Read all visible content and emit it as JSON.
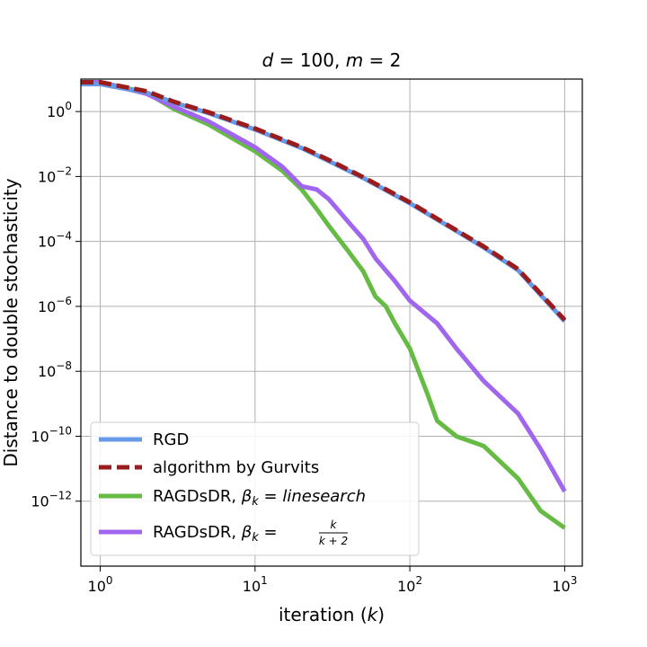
{
  "chart_data": {
    "type": "line",
    "title_parts": {
      "lhs1": "d",
      "eq1": " = 100,  ",
      "lhs2": "m",
      "eq2": " = 2"
    },
    "xlabel_parts": {
      "word": "iteration (",
      "var": "k",
      "close": ")"
    },
    "ylabel": "Distance to double stochasticity",
    "x_scale": "log",
    "y_scale": "log",
    "xlim": [
      0.75,
      1300
    ],
    "ylim": [
      1e-14,
      10
    ],
    "x_ticks": [
      {
        "value": 1,
        "base": "10",
        "exp": "0"
      },
      {
        "value": 10,
        "base": "10",
        "exp": "1"
      },
      {
        "value": 100,
        "base": "10",
        "exp": "2"
      },
      {
        "value": 1000,
        "base": "10",
        "exp": "3"
      }
    ],
    "y_ticks": [
      {
        "value": 1,
        "base": "10",
        "exp": "0"
      },
      {
        "value": 0.01,
        "base": "10",
        "exp": "−2"
      },
      {
        "value": 0.0001,
        "base": "10",
        "exp": "−4"
      },
      {
        "value": 1e-06,
        "base": "10",
        "exp": "−6"
      },
      {
        "value": 1e-08,
        "base": "10",
        "exp": "−8"
      },
      {
        "value": 1e-10,
        "base": "10",
        "exp": "−10"
      },
      {
        "value": 1e-12,
        "base": "10",
        "exp": "−12"
      }
    ],
    "grid": true,
    "legend_position": "lower-left",
    "series": [
      {
        "name": "RGD",
        "color": "#6699e8",
        "dash": "solid",
        "x": [
          0.75,
          1,
          2,
          3,
          5,
          10,
          20,
          30,
          50,
          100,
          200,
          300,
          500,
          1000
        ],
        "y": [
          7,
          7,
          3.8,
          1.9,
          0.9,
          0.28,
          0.075,
          0.03,
          0.009,
          0.0015,
          0.00021,
          6.5e-05,
          1.3e-05,
          3.5e-07
        ]
      },
      {
        "name": "algorithm by Gurvits",
        "color": "#9b1c1c",
        "dash": "dashed",
        "x": [
          0.75,
          1,
          2,
          3,
          5,
          10,
          20,
          30,
          50,
          100,
          200,
          300,
          500,
          1000
        ],
        "y": [
          8,
          8,
          4.2,
          2.0,
          0.95,
          0.3,
          0.08,
          0.032,
          0.0095,
          0.0016,
          0.00022,
          7e-05,
          1.4e-05,
          3.8e-07
        ]
      },
      {
        "name": "RAGDsDR, β_k = linesearch",
        "color": "#66bb44",
        "dash": "solid",
        "x": [
          0.75,
          1,
          2,
          3,
          5,
          10,
          15,
          20,
          25,
          30,
          40,
          50,
          60,
          70,
          80,
          100,
          130,
          150,
          200,
          300,
          500,
          700,
          1000
        ],
        "y": [
          8,
          8,
          3.8,
          1.2,
          0.4,
          0.06,
          0.015,
          0.004,
          0.001,
          0.0003,
          5e-05,
          1.2e-05,
          2e-06,
          1e-06,
          3e-07,
          5e-08,
          2e-09,
          3e-10,
          1e-10,
          5e-11,
          5e-12,
          5e-13,
          1.5e-13
        ]
      },
      {
        "name": "RAGDsDR, β_k = k/(k+2)",
        "color": "#a066ee",
        "dash": "solid",
        "x": [
          0.75,
          1,
          2,
          3,
          5,
          10,
          15,
          20,
          25,
          30,
          40,
          50,
          60,
          80,
          100,
          150,
          200,
          300,
          500,
          700,
          1000
        ],
        "y": [
          8,
          8,
          3.5,
          1.4,
          0.5,
          0.08,
          0.02,
          0.005,
          0.004,
          0.002,
          0.0004,
          0.00012,
          3e-05,
          6e-06,
          1.5e-06,
          3e-07,
          5e-08,
          5e-09,
          5e-10,
          4e-11,
          2e-12
        ]
      }
    ]
  },
  "legend": {
    "items": [
      {
        "label_main": "RGD"
      },
      {
        "label_main": "algorithm by Gurvits"
      },
      {
        "label_main": "RAGDsDR, ",
        "beta": "β",
        "sub": "k",
        "eq": " = ",
        "rhs_italic": "linesearch"
      },
      {
        "label_main": "RAGDsDR, ",
        "beta": "β",
        "sub": "k",
        "eq": " = ",
        "frac_num": "k",
        "frac_den": "k + 2"
      }
    ]
  }
}
